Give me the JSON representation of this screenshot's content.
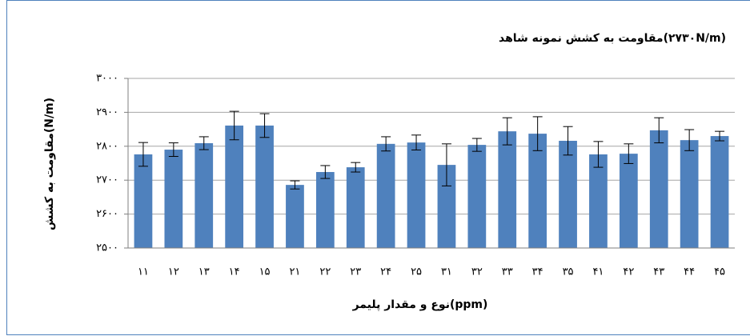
{
  "chart_data": {
    "type": "bar",
    "title": "مقاومت به کشش نمونه شاهد(۲۷۳۰N/m)",
    "y_label": "مقاومت به کشش(N/m)",
    "x_label": "نوع و مقدار پلیمر(ppm)",
    "categories": [
      "۱۱",
      "۱۲",
      "۱۳",
      "۱۴",
      "۱۵",
      "۲۱",
      "۲۲",
      "۲۳",
      "۲۴",
      "۲۵",
      "۳۱",
      "۳۲",
      "۳۳",
      "۳۴",
      "۳۵",
      "۴۱",
      "۴۲",
      "۴۳",
      "۴۴",
      "۴۵"
    ],
    "values": [
      2776,
      2790,
      2809,
      2861,
      2861,
      2686,
      2724,
      2738,
      2807,
      2811,
      2745,
      2804,
      2844,
      2837,
      2816,
      2776,
      2778,
      2847,
      2818,
      2830
    ],
    "errors": [
      35,
      20,
      19,
      42,
      35,
      12,
      19,
      14,
      21,
      22,
      62,
      19,
      40,
      50,
      42,
      38,
      29,
      37,
      31,
      14
    ],
    "color": "#4f81bd",
    "ylim": [
      2500,
      3000
    ],
    "yticks": [
      {
        "value": 2500,
        "label": "۲۵۰۰"
      },
      {
        "value": 2600,
        "label": "۲۶۰۰"
      },
      {
        "value": 2700,
        "label": "۲۷۰۰"
      },
      {
        "value": 2800,
        "label": "۲۸۰۰"
      },
      {
        "value": 2900,
        "label": "۲۹۰۰"
      },
      {
        "value": 3000,
        "label": "۳۰۰۰"
      }
    ],
    "grid": true
  }
}
